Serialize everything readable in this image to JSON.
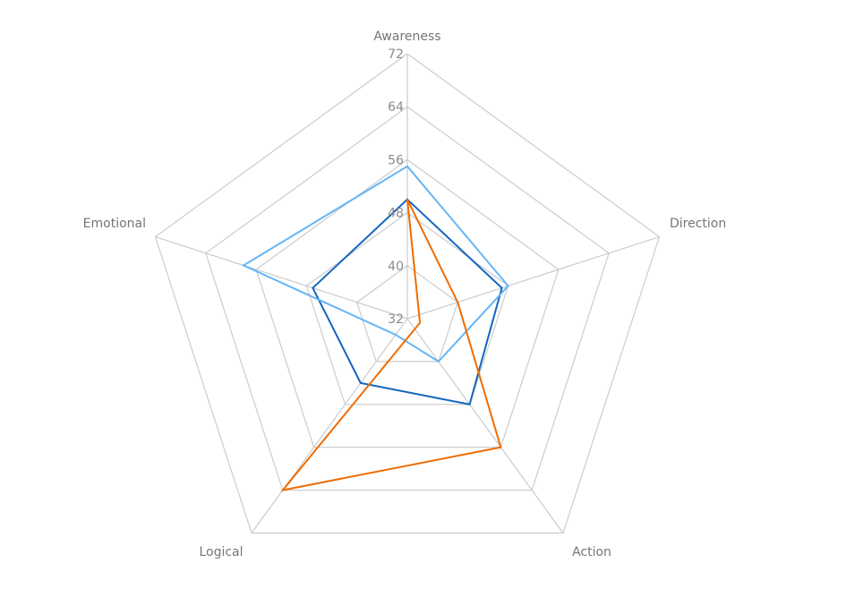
{
  "chart_data": {
    "type": "radar",
    "title": "",
    "axes": [
      "Awareness",
      "Direction",
      "Action",
      "Logical",
      "Emotional"
    ],
    "r_range": [
      32,
      72
    ],
    "r_ticks": [
      32,
      40,
      48,
      56,
      64,
      72
    ],
    "grid": true,
    "legend": "none",
    "series": [
      {
        "color": "#1565c0",
        "values": [
          50,
          47,
          48,
          44,
          47
        ]
      },
      {
        "color": "#64b5f6",
        "values": [
          55,
          48,
          40,
          35,
          58
        ]
      },
      {
        "color": "#ef6c00",
        "values": [
          50,
          40,
          56,
          64,
          30
        ]
      }
    ]
  }
}
